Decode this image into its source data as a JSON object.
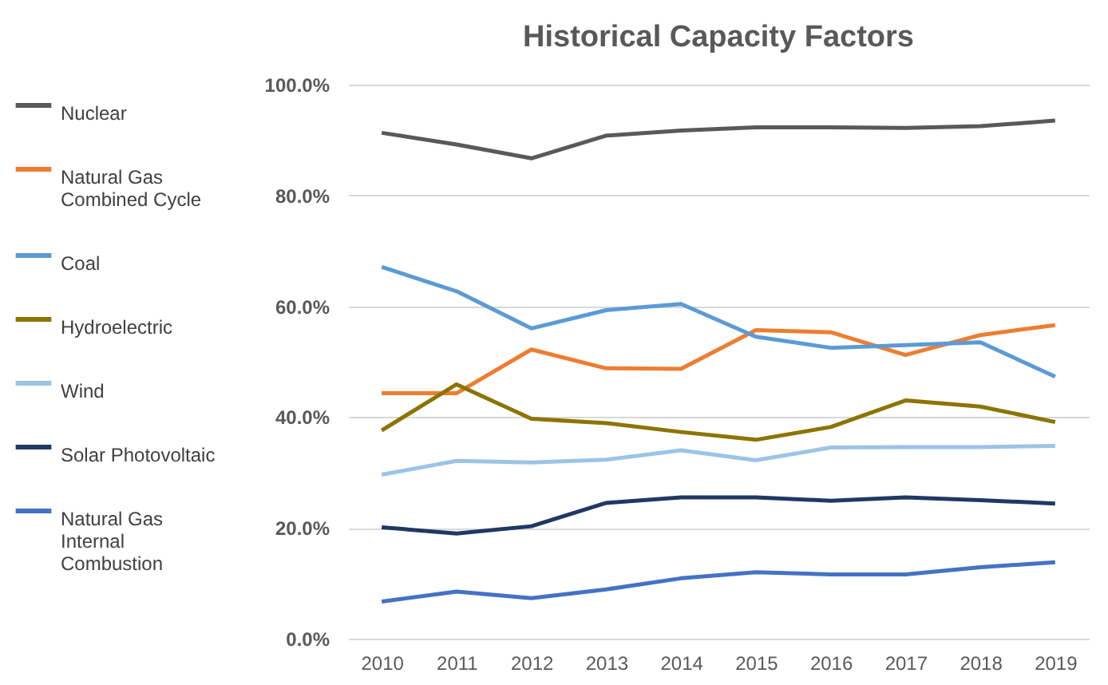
{
  "chart_data": {
    "type": "line",
    "title": "Historical Capacity Factors",
    "categories": [
      "2010",
      "2011",
      "2012",
      "2013",
      "2014",
      "2015",
      "2016",
      "2017",
      "2018",
      "2019"
    ],
    "series": [
      {
        "name": "Nuclear",
        "color": "#595959",
        "values": [
          91.3,
          89.2,
          86.7,
          90.8,
          91.7,
          92.3,
          92.3,
          92.2,
          92.5,
          93.5
        ]
      },
      {
        "name": "Natural Gas Combined Cycle",
        "color": "#ed7d31",
        "values": [
          44.3,
          44.3,
          52.2,
          48.8,
          48.7,
          55.7,
          55.3,
          51.2,
          54.8,
          56.6
        ]
      },
      {
        "name": "Coal",
        "color": "#5b9bd5",
        "values": [
          67.1,
          62.7,
          56.0,
          59.3,
          60.4,
          54.5,
          52.5,
          53.0,
          53.5,
          47.3
        ]
      },
      {
        "name": "Hydroelectric",
        "color": "#8c7400",
        "values": [
          37.6,
          45.9,
          39.7,
          38.9,
          37.3,
          35.9,
          38.2,
          43.0,
          41.9,
          39.1
        ]
      },
      {
        "name": "Wind",
        "color": "#9dc3e6",
        "values": [
          29.6,
          32.1,
          31.8,
          32.3,
          34.0,
          32.2,
          34.5,
          34.6,
          34.6,
          34.8
        ]
      },
      {
        "name": "Solar Photovoltaic",
        "color": "#203864",
        "values": [
          20.1,
          19.0,
          20.3,
          24.5,
          25.5,
          25.5,
          24.9,
          25.5,
          25.0,
          24.4
        ]
      },
      {
        "name": "Natural Gas Internal Combustion",
        "color": "#4472c4",
        "values": [
          6.7,
          8.5,
          7.3,
          8.9,
          10.9,
          12.0,
          11.6,
          11.6,
          12.9,
          13.8
        ]
      }
    ],
    "ylim": [
      0,
      100
    ],
    "yticks": [
      {
        "value": 0,
        "label": "0.0%"
      },
      {
        "value": 20,
        "label": "20.0%"
      },
      {
        "value": 40,
        "label": "40.0%"
      },
      {
        "value": 60,
        "label": "60.0%"
      },
      {
        "value": 80,
        "label": "80.0%"
      },
      {
        "value": 100,
        "label": "100.0%"
      }
    ],
    "grid": "y",
    "legend": "left",
    "marker": "none",
    "line_style": "solid"
  }
}
